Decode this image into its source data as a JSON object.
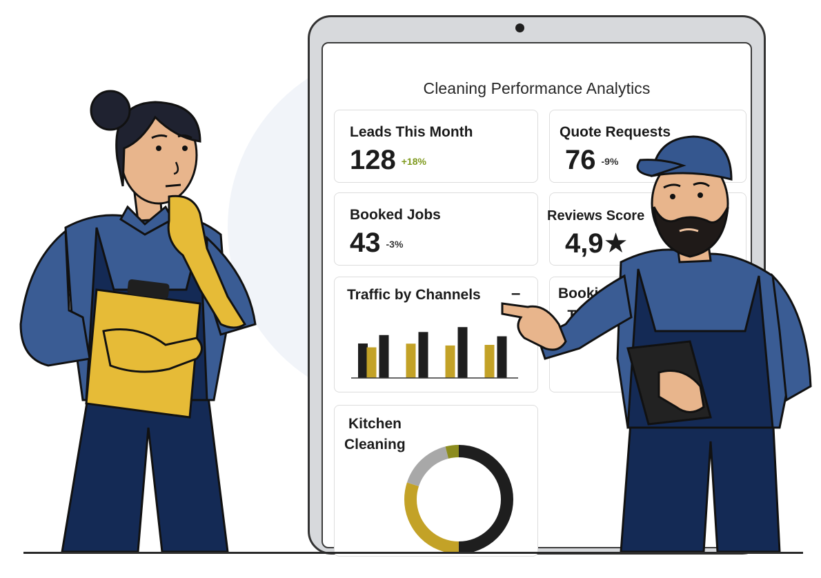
{
  "dashboard": {
    "title": "Cleaning Performance Analytics",
    "cards": {
      "leads": {
        "label": "Leads This Month",
        "value": "128",
        "change": "+18%"
      },
      "quotes": {
        "label": "Quote Requests",
        "value": "76",
        "change": "-9%"
      },
      "booked": {
        "label": "Booked Jobs",
        "value": "43",
        "change": "-3%"
      },
      "reviews": {
        "label": "Reviews Score",
        "value": "4,9★"
      },
      "traffic": {
        "label": "Traffic by Channels",
        "menu": "–"
      },
      "trend": {
        "label_line1": "Booking",
        "label_line2": "Trend"
      },
      "kitchen": {
        "label_line1": "Kitchen",
        "label_line2": "Cleaning"
      }
    },
    "colors": {
      "dark": "#1e1e1e",
      "gold": "#c3a227",
      "gray": "#a8a8a8",
      "olive": "#8c8c1e"
    }
  },
  "chart_data": [
    {
      "type": "bar",
      "title": "Traffic by Channels",
      "categories": [
        "",
        "",
        "",
        ""
      ],
      "series": [
        {
          "values": [
            5.0,
            5.6,
            5.3,
            5.4
          ]
        },
        {
          "values": [
            7.0,
            7.5,
            8.3,
            6.8
          ]
        }
      ],
      "ylim": [
        0,
        9
      ],
      "grid": false
    },
    {
      "type": "pie",
      "title": "Kitchen Cleaning",
      "values": [
        50,
        30,
        16,
        4
      ]
    }
  ],
  "illustration": {
    "characters": [
      "woman-with-clipboard",
      "man-with-tablet"
    ]
  }
}
